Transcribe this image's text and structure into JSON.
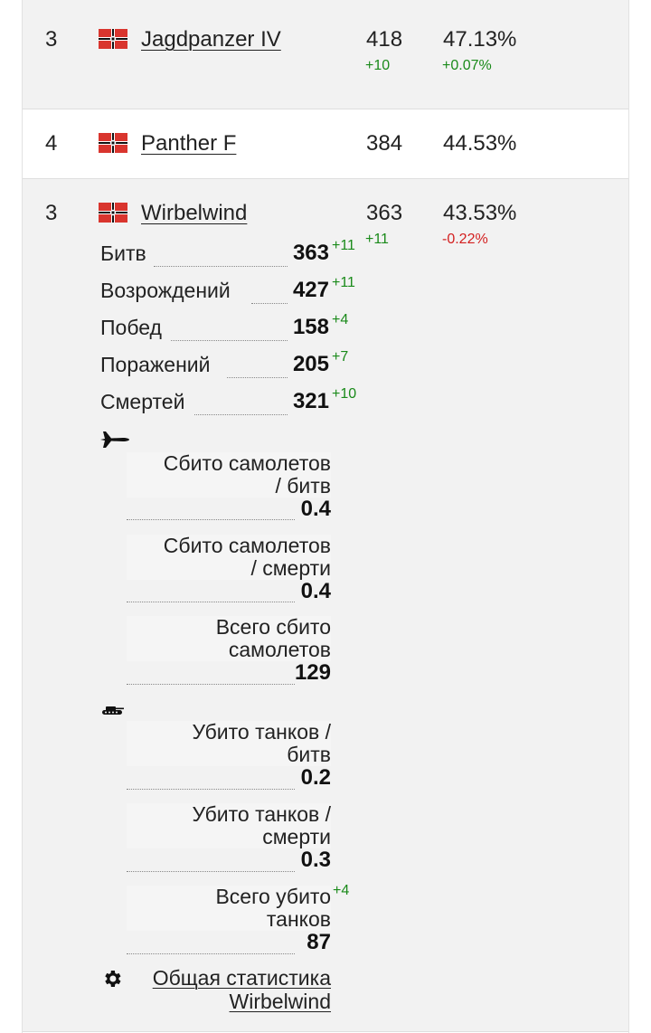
{
  "rows": [
    {
      "rank": "3",
      "name": "Jagdpanzer IV",
      "battles": "418",
      "battles_delta": "+10",
      "winrate": "47.13%",
      "winrate_delta": "+0.07%"
    },
    {
      "rank": "4",
      "name": "Panther F",
      "battles": "384",
      "winrate": "44.53%"
    },
    {
      "rank": "3",
      "name": "Wirbelwind",
      "battles": "363",
      "battles_delta": "+11",
      "winrate": "43.53%",
      "winrate_delta": "-0.22%"
    }
  ],
  "details": {
    "stats": [
      {
        "label": "Битв",
        "value": "363",
        "inc": "+11"
      },
      {
        "label": "Возрождений",
        "value": "427",
        "inc": "+11"
      },
      {
        "label": "Побед",
        "value": "158",
        "inc": "+4"
      },
      {
        "label": "Поражений",
        "value": "205",
        "inc": "+7"
      },
      {
        "label": "Смертей",
        "value": "321",
        "inc": "+10"
      }
    ],
    "air": {
      "icon": "airplane-icon",
      "items": [
        {
          "l1": "Сбито самолетов",
          "l2": "/ битв",
          "value": "0.4"
        },
        {
          "l1": "Сбито самолетов",
          "l2": "/ смерти",
          "value": "0.4"
        },
        {
          "l1": "Всего сбито",
          "l2": "самолетов",
          "value": "129"
        }
      ]
    },
    "ground": {
      "icon": "tank-icon",
      "items": [
        {
          "l1": "Убито танков /",
          "l2": "битв",
          "value": "0.2"
        },
        {
          "l1": "Убито танков /",
          "l2": "смерти",
          "value": "0.3"
        },
        {
          "l1": "Всего убито",
          "l2": "танков",
          "value": "87",
          "inc": "+4"
        }
      ]
    },
    "overall_link": {
      "line1": "Общая статистика",
      "line2": "Wirbelwind",
      "icon": "gear-icon"
    }
  },
  "colors": {
    "positive": "#1a8a1a",
    "negative": "#d32020",
    "row_bg": "#f2f2f2"
  }
}
